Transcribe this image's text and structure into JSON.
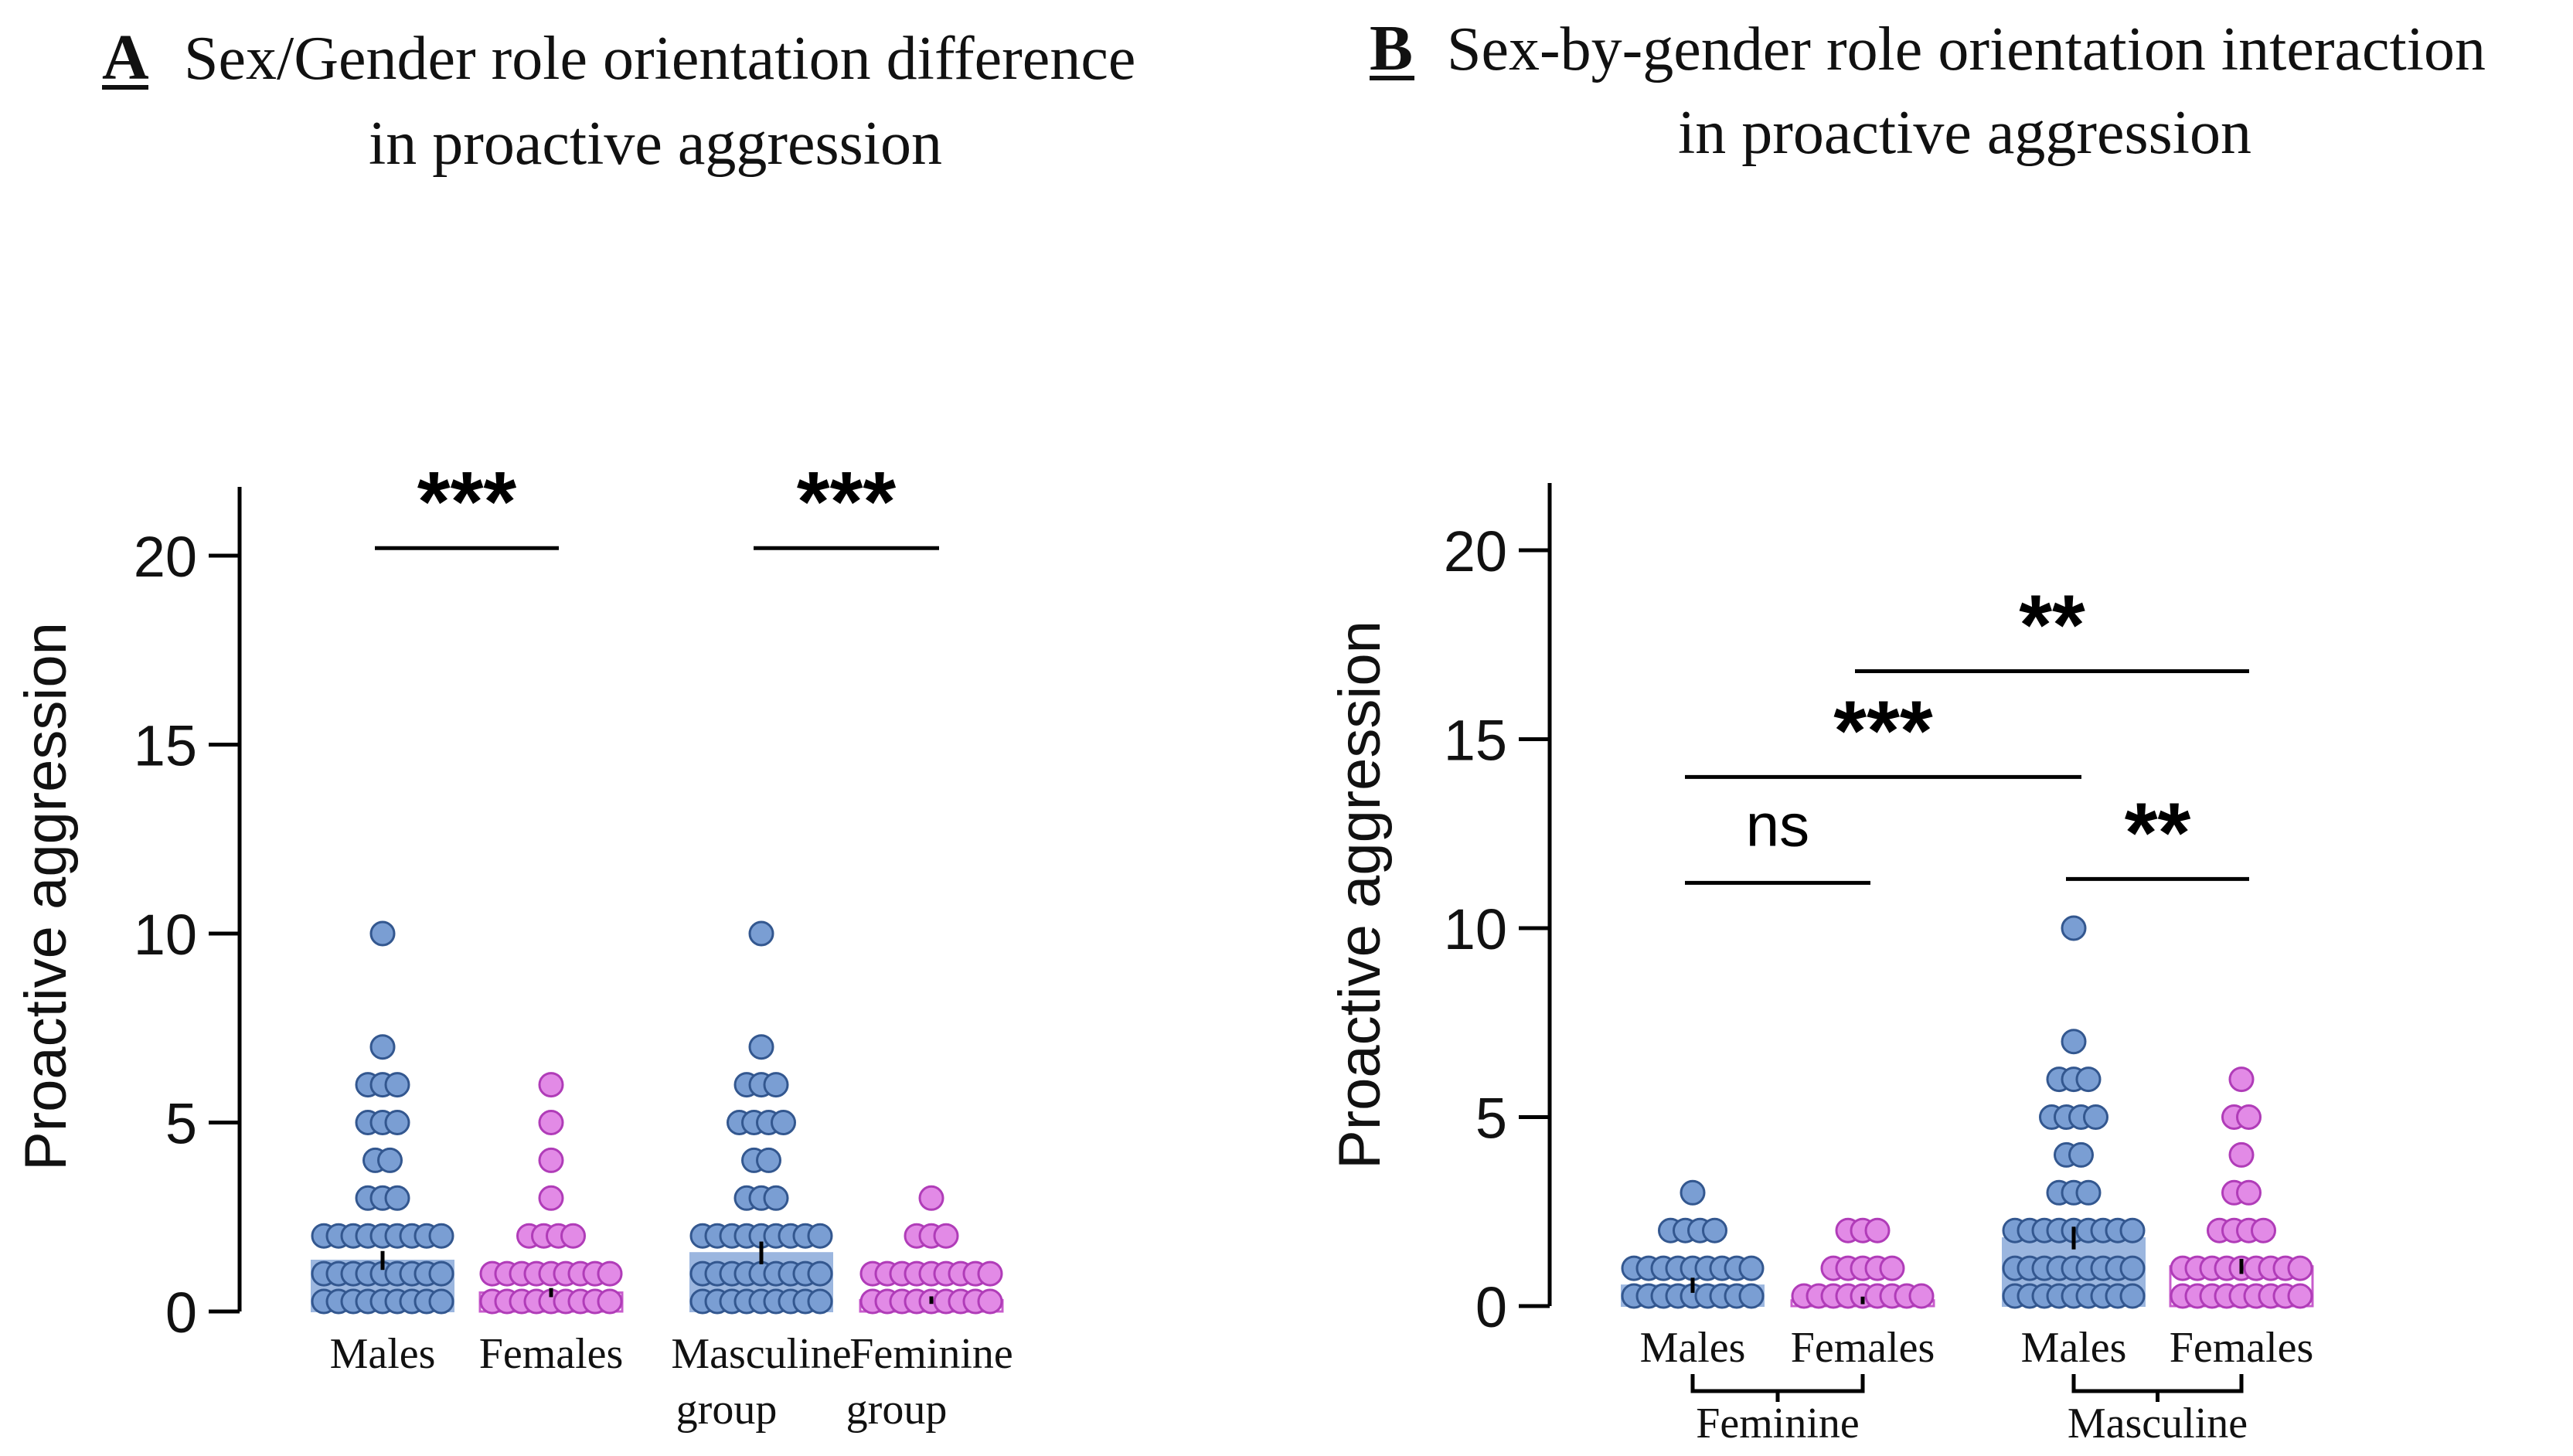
{
  "colors": {
    "male_dot": "#7a9ed3",
    "male_dot_stroke": "#33578f",
    "male_bar": "#9bb6df",
    "female_dot": "#e28ae6",
    "female_dot_stroke": "#b03cb8",
    "female_bar_stroke": "#c85ccc",
    "axis": "#000000"
  },
  "panels": {
    "a": {
      "letter": "A",
      "title_line1": "Sex/Gender role orientation difference",
      "title_line2": "in proactive aggression"
    },
    "b": {
      "letter": "B",
      "title_line1": "Sex-by-gender role orientation interaction",
      "title_line2": "in proactive aggression"
    }
  },
  "chart_data": [
    {
      "type": "bar",
      "panel": "A",
      "title": "Sex/Gender role orientation difference in proactive aggression",
      "ylabel": "Proactive aggression",
      "ylim": [
        0,
        22
      ],
      "yticks": [
        0,
        5,
        10,
        15,
        20
      ],
      "categories": [
        "Males",
        "Females",
        "Masculine group",
        "Feminine group"
      ],
      "category_lines": [
        [
          "Males"
        ],
        [
          "Females"
        ],
        [
          "Masculine",
          "group"
        ],
        [
          "Feminine",
          "group"
        ]
      ],
      "means": [
        1.35,
        0.5,
        1.55,
        0.3
      ],
      "errors": [
        0.25,
        0.12,
        0.3,
        0.1
      ],
      "bar_style": [
        "filled",
        "outline",
        "filled",
        "outline"
      ],
      "series_color": [
        "male",
        "female",
        "male",
        "female"
      ],
      "points": [
        [
          [
            0,
            45
          ],
          [
            1,
            25
          ],
          [
            2,
            16
          ],
          [
            3,
            3
          ],
          [
            4,
            2
          ],
          [
            5,
            3
          ],
          [
            6,
            3
          ],
          [
            7,
            1
          ],
          [
            10,
            1
          ]
        ],
        [
          [
            0,
            40
          ],
          [
            1,
            13
          ],
          [
            2,
            4
          ],
          [
            3,
            1
          ],
          [
            4,
            1
          ],
          [
            5,
            1
          ],
          [
            6,
            1
          ]
        ],
        [
          [
            0,
            40
          ],
          [
            1,
            30
          ],
          [
            2,
            20
          ],
          [
            3,
            3
          ],
          [
            4,
            2
          ],
          [
            5,
            4
          ],
          [
            6,
            3
          ],
          [
            7,
            1
          ],
          [
            10,
            1
          ]
        ],
        [
          [
            0,
            45
          ],
          [
            1,
            12
          ],
          [
            2,
            3
          ],
          [
            3,
            1
          ]
        ]
      ],
      "comparisons": [
        {
          "from": 0,
          "to": 1,
          "y": 20.2,
          "label": "***"
        },
        {
          "from": 2,
          "to": 3,
          "y": 20.2,
          "label": "***"
        }
      ]
    },
    {
      "type": "bar",
      "panel": "B",
      "title": "Sex-by-gender role orientation interaction in proactive aggression",
      "ylabel": "Proactive aggression",
      "ylim": [
        0,
        22
      ],
      "yticks": [
        0,
        5,
        10,
        15,
        20
      ],
      "categories": [
        "Males",
        "Females",
        "Males",
        "Females"
      ],
      "category_lines": [
        [
          "Males"
        ],
        [
          "Females"
        ],
        [
          "Males"
        ],
        [
          "Females"
        ]
      ],
      "groups": [
        {
          "label": "Feminine",
          "from": 0,
          "to": 1
        },
        {
          "label": "Masculine",
          "from": 2,
          "to": 3
        }
      ],
      "means": [
        0.55,
        0.15,
        1.8,
        1.05
      ],
      "errors": [
        0.2,
        0.1,
        0.3,
        0.2
      ],
      "bar_style": [
        "filled",
        "outline",
        "filled",
        "outline"
      ],
      "series_color": [
        "male",
        "female",
        "male",
        "female"
      ],
      "points": [
        [
          [
            0,
            25
          ],
          [
            1,
            12
          ],
          [
            2,
            4
          ],
          [
            3,
            1
          ]
        ],
        [
          [
            0,
            30
          ],
          [
            1,
            5
          ],
          [
            2,
            3
          ]
        ],
        [
          [
            0,
            40
          ],
          [
            1,
            30
          ],
          [
            2,
            20
          ],
          [
            3,
            3
          ],
          [
            4,
            2
          ],
          [
            5,
            4
          ],
          [
            6,
            3
          ],
          [
            7,
            1
          ],
          [
            10,
            1
          ]
        ],
        [
          [
            0,
            40
          ],
          [
            1,
            15
          ],
          [
            2,
            4
          ],
          [
            3,
            2
          ],
          [
            4,
            1
          ],
          [
            5,
            2
          ],
          [
            6,
            1
          ]
        ]
      ],
      "comparisons": [
        {
          "from": 0,
          "to": 1,
          "y": 11.2,
          "label": "ns"
        },
        {
          "from": 0,
          "to": 2,
          "y": 14.0,
          "label": "***"
        },
        {
          "from": 1,
          "to": 3,
          "y": 16.8,
          "label": "**"
        },
        {
          "from": 2,
          "to": 3,
          "y": 11.3,
          "label": "**"
        }
      ]
    }
  ]
}
